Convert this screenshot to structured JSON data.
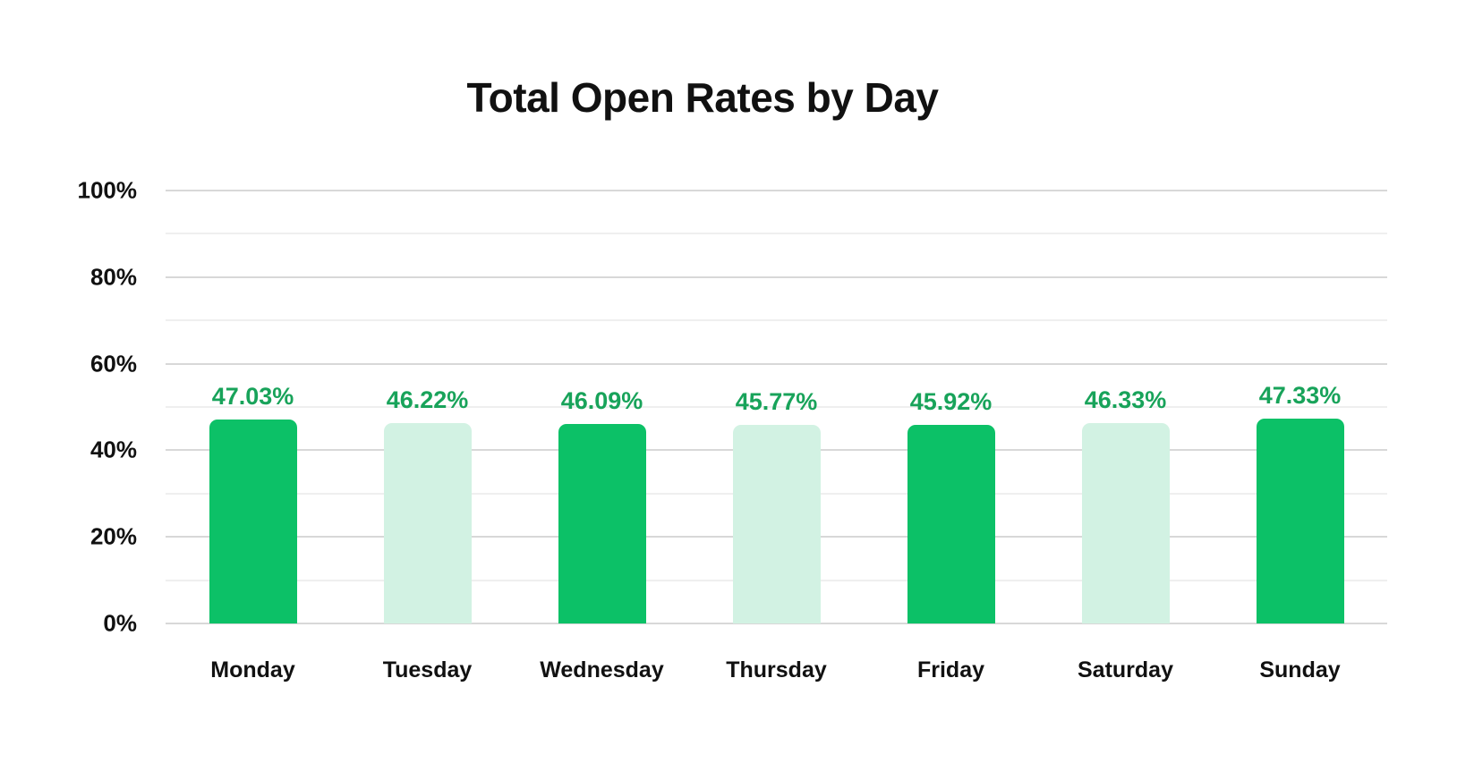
{
  "chart_data": {
    "type": "bar",
    "title": "Total Open Rates by Day",
    "categories": [
      "Monday",
      "Tuesday",
      "Wednesday",
      "Thursday",
      "Friday",
      "Saturday",
      "Sunday"
    ],
    "values": [
      47.03,
      46.22,
      46.09,
      45.77,
      45.92,
      46.33,
      47.33
    ],
    "value_labels": [
      "47.03%",
      "46.22%",
      "46.09%",
      "45.77%",
      "45.92%",
      "46.33%",
      "47.33%"
    ],
    "xlabel": "",
    "ylabel": "",
    "ylim": [
      0,
      100
    ],
    "y_ticks": [
      "0%",
      "20%",
      "40%",
      "60%",
      "80%",
      "100%"
    ],
    "y_tick_values": [
      0,
      20,
      40,
      60,
      80,
      100
    ],
    "grid": "horizontal lines every 10%, major every 20%",
    "legend_position": "none",
    "bar_color_pattern": [
      "primary",
      "secondary",
      "primary",
      "secondary",
      "primary",
      "secondary",
      "primary"
    ],
    "colors": {
      "bar_primary": "#0cc167",
      "bar_secondary": "#d2f2e3",
      "value_label_text": "#18a35a",
      "axis_text": "#111111",
      "title_text": "#111111",
      "gridline_major": "#d8d8d8",
      "gridline_minor": "#efefef",
      "background": "#ffffff"
    }
  }
}
